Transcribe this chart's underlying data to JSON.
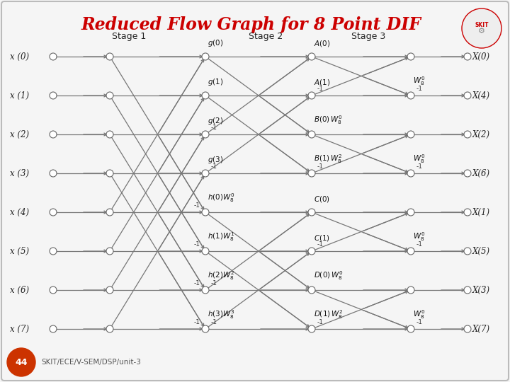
{
  "title": "Reduced Flow Graph for 8 Point DIF",
  "bg_color": "#f5f5f5",
  "border_color": "#aaaaaa",
  "title_color": "#cc0000",
  "node_color": "white",
  "node_edge_color": "#666666",
  "line_color": "#777777",
  "stage_labels": [
    "Stage 1",
    "Stage 2",
    "Stage 3"
  ],
  "input_labels": [
    "x (0)",
    "x (1)",
    "x (2)",
    "x (3)",
    "x (4)",
    "x (5)",
    "x (6)",
    "x (7)"
  ],
  "output_labels": [
    "X(0)",
    "X(4)",
    "X(2)",
    "X(6)",
    "X(1)",
    "X(5)",
    "X(3)",
    "X(7)"
  ]
}
